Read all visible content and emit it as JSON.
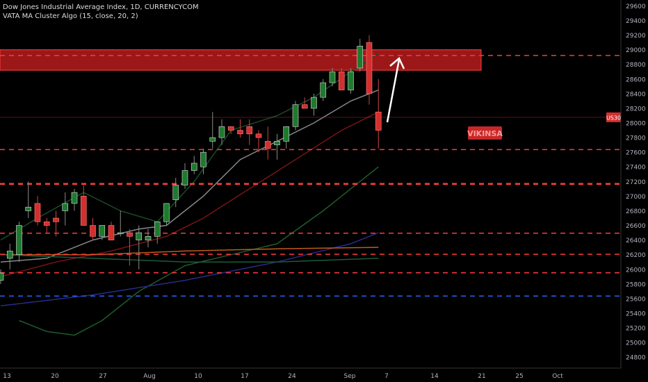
{
  "legend": {
    "title": "Dow Jones Industrial Average Index, 1D, CURRENCYCOM",
    "indicator": "VATA MA Cluster Algo (15, close, 20, 2)"
  },
  "watermark": "VIKINSA",
  "symbol_tag": "US30",
  "colors": {
    "background": "#000000",
    "bull": "#1e7a2e",
    "bear": "#d32f2f",
    "level": "#ff3b3b",
    "zone": "#b71c1c",
    "blue_level": "#2962ff",
    "axis_text": "#b2b5be"
  },
  "chart_data": {
    "type": "candlestick",
    "y_axis_ticks": [
      29600,
      29400,
      29200,
      29000,
      28800,
      28600,
      28400,
      28200,
      28000,
      27800,
      27600,
      27400,
      27200,
      27000,
      26800,
      26600,
      26400,
      26200,
      26000,
      25800,
      25600,
      25400,
      25200,
      25000,
      24800
    ],
    "ylim": [
      24650,
      29680
    ],
    "x_axis_ticks": [
      "13",
      "20",
      "27",
      "Aug",
      "10",
      "17",
      "24",
      "Sep",
      "7",
      "14",
      "21",
      "25",
      "Oct"
    ],
    "candles": [
      {
        "o": 25850,
        "h": 26000,
        "l": 25800,
        "c": 25950
      },
      {
        "o": 26150,
        "h": 26350,
        "l": 26000,
        "c": 26250
      },
      {
        "o": 26200,
        "h": 26650,
        "l": 26100,
        "c": 26600
      },
      {
        "o": 26800,
        "h": 27200,
        "l": 26700,
        "c": 26850
      },
      {
        "o": 26900,
        "h": 27000,
        "l": 26600,
        "c": 26650
      },
      {
        "o": 26650,
        "h": 26700,
        "l": 26500,
        "c": 26600
      },
      {
        "o": 26700,
        "h": 26800,
        "l": 26450,
        "c": 26650
      },
      {
        "o": 26800,
        "h": 27050,
        "l": 26600,
        "c": 26900
      },
      {
        "o": 26900,
        "h": 27100,
        "l": 26800,
        "c": 27050
      },
      {
        "o": 27000,
        "h": 27150,
        "l": 26600,
        "c": 26600
      },
      {
        "o": 26600,
        "h": 26700,
        "l": 26400,
        "c": 26450
      },
      {
        "o": 26450,
        "h": 26600,
        "l": 26400,
        "c": 26600
      },
      {
        "o": 26600,
        "h": 26650,
        "l": 26400,
        "c": 26400
      },
      {
        "o": 26500,
        "h": 26800,
        "l": 26450,
        "c": 26500
      },
      {
        "o": 26500,
        "h": 26550,
        "l": 26050,
        "c": 26450
      },
      {
        "o": 26400,
        "h": 26600,
        "l": 26000,
        "c": 26500
      },
      {
        "o": 26400,
        "h": 26550,
        "l": 26300,
        "c": 26450
      },
      {
        "o": 26450,
        "h": 26650,
        "l": 26350,
        "c": 26650
      },
      {
        "o": 26650,
        "h": 26900,
        "l": 26600,
        "c": 26900
      },
      {
        "o": 26950,
        "h": 27250,
        "l": 26850,
        "c": 27150
      },
      {
        "o": 27150,
        "h": 27450,
        "l": 27100,
        "c": 27350
      },
      {
        "o": 27350,
        "h": 27550,
        "l": 27300,
        "c": 27450
      },
      {
        "o": 27400,
        "h": 27650,
        "l": 27300,
        "c": 27600
      },
      {
        "o": 27750,
        "h": 28150,
        "l": 27650,
        "c": 27800
      },
      {
        "o": 27800,
        "h": 28050,
        "l": 27700,
        "c": 27950
      },
      {
        "o": 27950,
        "h": 27950,
        "l": 27850,
        "c": 27900
      },
      {
        "o": 27900,
        "h": 28050,
        "l": 27800,
        "c": 27850
      },
      {
        "o": 27950,
        "h": 28050,
        "l": 27700,
        "c": 27850
      },
      {
        "o": 27850,
        "h": 27900,
        "l": 27600,
        "c": 27800
      },
      {
        "o": 27750,
        "h": 27950,
        "l": 27500,
        "c": 27650
      },
      {
        "o": 27700,
        "h": 27850,
        "l": 27500,
        "c": 27750
      },
      {
        "o": 27750,
        "h": 27950,
        "l": 27650,
        "c": 27950
      },
      {
        "o": 27950,
        "h": 28300,
        "l": 27900,
        "c": 28250
      },
      {
        "o": 28250,
        "h": 28350,
        "l": 28200,
        "c": 28200
      },
      {
        "o": 28200,
        "h": 28400,
        "l": 28100,
        "c": 28350
      },
      {
        "o": 28350,
        "h": 28600,
        "l": 28300,
        "c": 28550
      },
      {
        "o": 28550,
        "h": 28750,
        "l": 28500,
        "c": 28700
      },
      {
        "o": 28700,
        "h": 28750,
        "l": 28450,
        "c": 28450
      },
      {
        "o": 28450,
        "h": 28750,
        "l": 28400,
        "c": 28700
      },
      {
        "o": 28750,
        "h": 29150,
        "l": 28700,
        "c": 29050
      },
      {
        "o": 29100,
        "h": 29200,
        "l": 28250,
        "c": 28400
      },
      {
        "o": 28150,
        "h": 28600,
        "l": 27650,
        "c": 27900
      }
    ],
    "levels": [
      {
        "value": 28922,
        "label": "28922",
        "color": "#ff3b3b"
      },
      {
        "value": 27636,
        "label": "27636",
        "color": "#ff3b3b"
      },
      {
        "value": 27172,
        "label": "27172",
        "color": "#ff3b3b"
      },
      {
        "value": 27161,
        "label": "27161",
        "color": "#ff3b3b"
      },
      {
        "value": 26494,
        "label": "26494",
        "color": "#ff3b3b"
      },
      {
        "value": 26205,
        "label": "26205",
        "color": "#ff3b3b"
      },
      {
        "value": 25952,
        "label": "25952",
        "color": "#ff3b3b"
      },
      {
        "value": 25635,
        "label": "25635",
        "color": "#2962ff"
      }
    ],
    "price_tag": {
      "value": 28077,
      "label": "28077"
    },
    "zone": {
      "top": 29000,
      "bottom": 28720
    },
    "ma_lines": [
      {
        "name": "",
        "color": "#888888",
        "points": [
          [
            0,
            26100
          ],
          [
            5,
            26150
          ],
          [
            10,
            26400
          ],
          [
            15,
            26550
          ],
          [
            18,
            26600
          ],
          [
            22,
            27000
          ],
          [
            26,
            27500
          ],
          [
            30,
            27750
          ],
          [
            34,
            28000
          ],
          [
            38,
            28300
          ],
          [
            41,
            28450
          ]
        ]
      },
      {
        "name": "",
        "color": "#7a1414",
        "points": [
          [
            0,
            25900
          ],
          [
            6,
            26100
          ],
          [
            12,
            26250
          ],
          [
            18,
            26450
          ],
          [
            22,
            26700
          ],
          [
            27,
            27100
          ],
          [
            32,
            27500
          ],
          [
            37,
            27900
          ],
          [
            41,
            28150
          ]
        ]
      },
      {
        "name": "",
        "color": "#1a4a2a",
        "points": [
          [
            0,
            26400
          ],
          [
            4,
            26700
          ],
          [
            9,
            27050
          ],
          [
            13,
            26800
          ],
          [
            17,
            26650
          ],
          [
            21,
            27200
          ],
          [
            25,
            27900
          ],
          [
            30,
            28100
          ],
          [
            34,
            28350
          ],
          [
            38,
            28700
          ],
          [
            41,
            28950
          ]
        ]
      },
      {
        "name": "",
        "color": "#1f5c2a",
        "points": [
          [
            2,
            25300
          ],
          [
            5,
            25150
          ],
          [
            8,
            25100
          ],
          [
            11,
            25300
          ],
          [
            15,
            25700
          ],
          [
            20,
            26050
          ],
          [
            25,
            26200
          ],
          [
            30,
            26350
          ],
          [
            35,
            26800
          ],
          [
            38,
            27100
          ],
          [
            41,
            27400
          ]
        ]
      },
      {
        "name": "",
        "color": "#2a2a8a",
        "points": [
          [
            0,
            25500
          ],
          [
            10,
            25650
          ],
          [
            20,
            25850
          ],
          [
            30,
            26100
          ],
          [
            38,
            26350
          ],
          [
            41,
            26500
          ]
        ]
      },
      {
        "name": "",
        "color": "#c25a1a",
        "points": [
          [
            0,
            26200
          ],
          [
            10,
            26200
          ],
          [
            20,
            26250
          ],
          [
            30,
            26280
          ],
          [
            41,
            26300
          ]
        ]
      },
      {
        "name": "",
        "color": "#1d5a3a",
        "points": [
          [
            0,
            26200
          ],
          [
            10,
            26150
          ],
          [
            20,
            26100
          ],
          [
            30,
            26100
          ],
          [
            41,
            26150
          ]
        ]
      }
    ]
  }
}
